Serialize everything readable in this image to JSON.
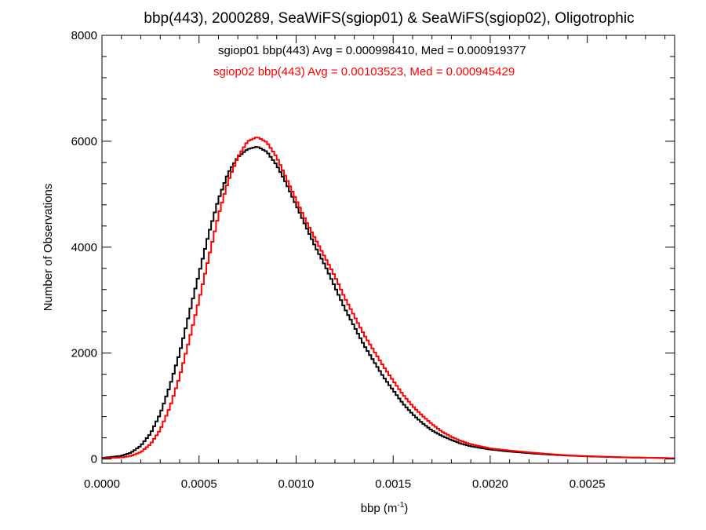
{
  "chart_data": {
    "type": "line",
    "title": "bbp(443), 2000289, SeaWiFS(sgiop01) & SeaWiFS(sgiop02), Oligotrophic",
    "xlabel": "bbp (m",
    "xlabel_sup": "-1",
    "xlabel_end": ")",
    "ylabel": "Number of Observations",
    "xlim": [
      0.0,
      0.00295
    ],
    "ylim": [
      -80,
      8000
    ],
    "xticks": [
      {
        "value": 0.0,
        "label": "0.0000"
      },
      {
        "value": 0.0005,
        "label": "0.0005"
      },
      {
        "value": 0.001,
        "label": "0.0010"
      },
      {
        "value": 0.0015,
        "label": "0.0015"
      },
      {
        "value": 0.002,
        "label": "0.0020"
      },
      {
        "value": 0.0025,
        "label": "0.0025"
      }
    ],
    "yticks": [
      {
        "value": 0,
        "label": "0"
      },
      {
        "value": 2000,
        "label": "2000"
      },
      {
        "value": 4000,
        "label": "4000"
      },
      {
        "value": 6000,
        "label": "6000"
      },
      {
        "value": 8000,
        "label": "8000"
      }
    ],
    "grid": false,
    "legend_position": "top-center",
    "series": [
      {
        "name": "sgiop01 bbp(443) Avg = 0.000998410, Med = 0.000919377",
        "color": "#000000",
        "step": "histogram",
        "points": [
          [
            0.0,
            20
          ],
          [
            0.0001,
            60
          ],
          [
            0.00015,
            120
          ],
          [
            0.0002,
            250
          ],
          [
            0.00025,
            480
          ],
          [
            0.0003,
            850
          ],
          [
            0.00035,
            1380
          ],
          [
            0.0004,
            2000
          ],
          [
            0.00045,
            2750
          ],
          [
            0.0005,
            3500
          ],
          [
            0.00055,
            4250
          ],
          [
            0.0006,
            4900
          ],
          [
            0.00065,
            5400
          ],
          [
            0.0007,
            5700
          ],
          [
            0.00075,
            5850
          ],
          [
            0.0008,
            5900
          ],
          [
            0.00085,
            5800
          ],
          [
            0.0009,
            5550
          ],
          [
            0.00095,
            5200
          ],
          [
            0.001,
            4800
          ],
          [
            0.00105,
            4400
          ],
          [
            0.0011,
            4000
          ],
          [
            0.00115,
            3650
          ],
          [
            0.0012,
            3250
          ],
          [
            0.00125,
            2850
          ],
          [
            0.0013,
            2500
          ],
          [
            0.00135,
            2150
          ],
          [
            0.0014,
            1850
          ],
          [
            0.00145,
            1550
          ],
          [
            0.0015,
            1300
          ],
          [
            0.00155,
            1050
          ],
          [
            0.0016,
            850
          ],
          [
            0.00165,
            680
          ],
          [
            0.0017,
            540
          ],
          [
            0.00175,
            440
          ],
          [
            0.0018,
            360
          ],
          [
            0.00185,
            290
          ],
          [
            0.0019,
            240
          ],
          [
            0.002,
            180
          ],
          [
            0.0021,
            140
          ],
          [
            0.0022,
            110
          ],
          [
            0.0023,
            85
          ],
          [
            0.0024,
            65
          ],
          [
            0.0025,
            50
          ],
          [
            0.0026,
            40
          ],
          [
            0.0027,
            30
          ],
          [
            0.0028,
            25
          ],
          [
            0.00295,
            15
          ]
        ]
      },
      {
        "name": "sgiop02 bbp(443) Avg = 0.00103523, Med = 0.000945429",
        "color": "#ff0000",
        "step": "histogram",
        "points": [
          [
            0.0,
            10
          ],
          [
            0.0001,
            30
          ],
          [
            0.00015,
            60
          ],
          [
            0.0002,
            130
          ],
          [
            0.00025,
            280
          ],
          [
            0.0003,
            550
          ],
          [
            0.00035,
            980
          ],
          [
            0.0004,
            1550
          ],
          [
            0.00045,
            2250
          ],
          [
            0.0005,
            3000
          ],
          [
            0.00055,
            3800
          ],
          [
            0.0006,
            4600
          ],
          [
            0.00065,
            5250
          ],
          [
            0.0007,
            5700
          ],
          [
            0.00075,
            6000
          ],
          [
            0.0008,
            6080
          ],
          [
            0.00085,
            5980
          ],
          [
            0.0009,
            5700
          ],
          [
            0.00095,
            5300
          ],
          [
            0.001,
            4900
          ],
          [
            0.00105,
            4500
          ],
          [
            0.0011,
            4150
          ],
          [
            0.00115,
            3800
          ],
          [
            0.0012,
            3450
          ],
          [
            0.00125,
            3050
          ],
          [
            0.0013,
            2700
          ],
          [
            0.00135,
            2350
          ],
          [
            0.0014,
            2050
          ],
          [
            0.00145,
            1750
          ],
          [
            0.0015,
            1480
          ],
          [
            0.00155,
            1220
          ],
          [
            0.0016,
            1000
          ],
          [
            0.00165,
            820
          ],
          [
            0.0017,
            660
          ],
          [
            0.00175,
            520
          ],
          [
            0.0018,
            420
          ],
          [
            0.00185,
            340
          ],
          [
            0.0019,
            280
          ],
          [
            0.002,
            200
          ],
          [
            0.0021,
            160
          ],
          [
            0.0022,
            125
          ],
          [
            0.0023,
            95
          ],
          [
            0.0024,
            70
          ],
          [
            0.0025,
            55
          ],
          [
            0.0026,
            42
          ],
          [
            0.0027,
            32
          ],
          [
            0.0028,
            25
          ],
          [
            0.00295,
            15
          ]
        ]
      }
    ]
  }
}
